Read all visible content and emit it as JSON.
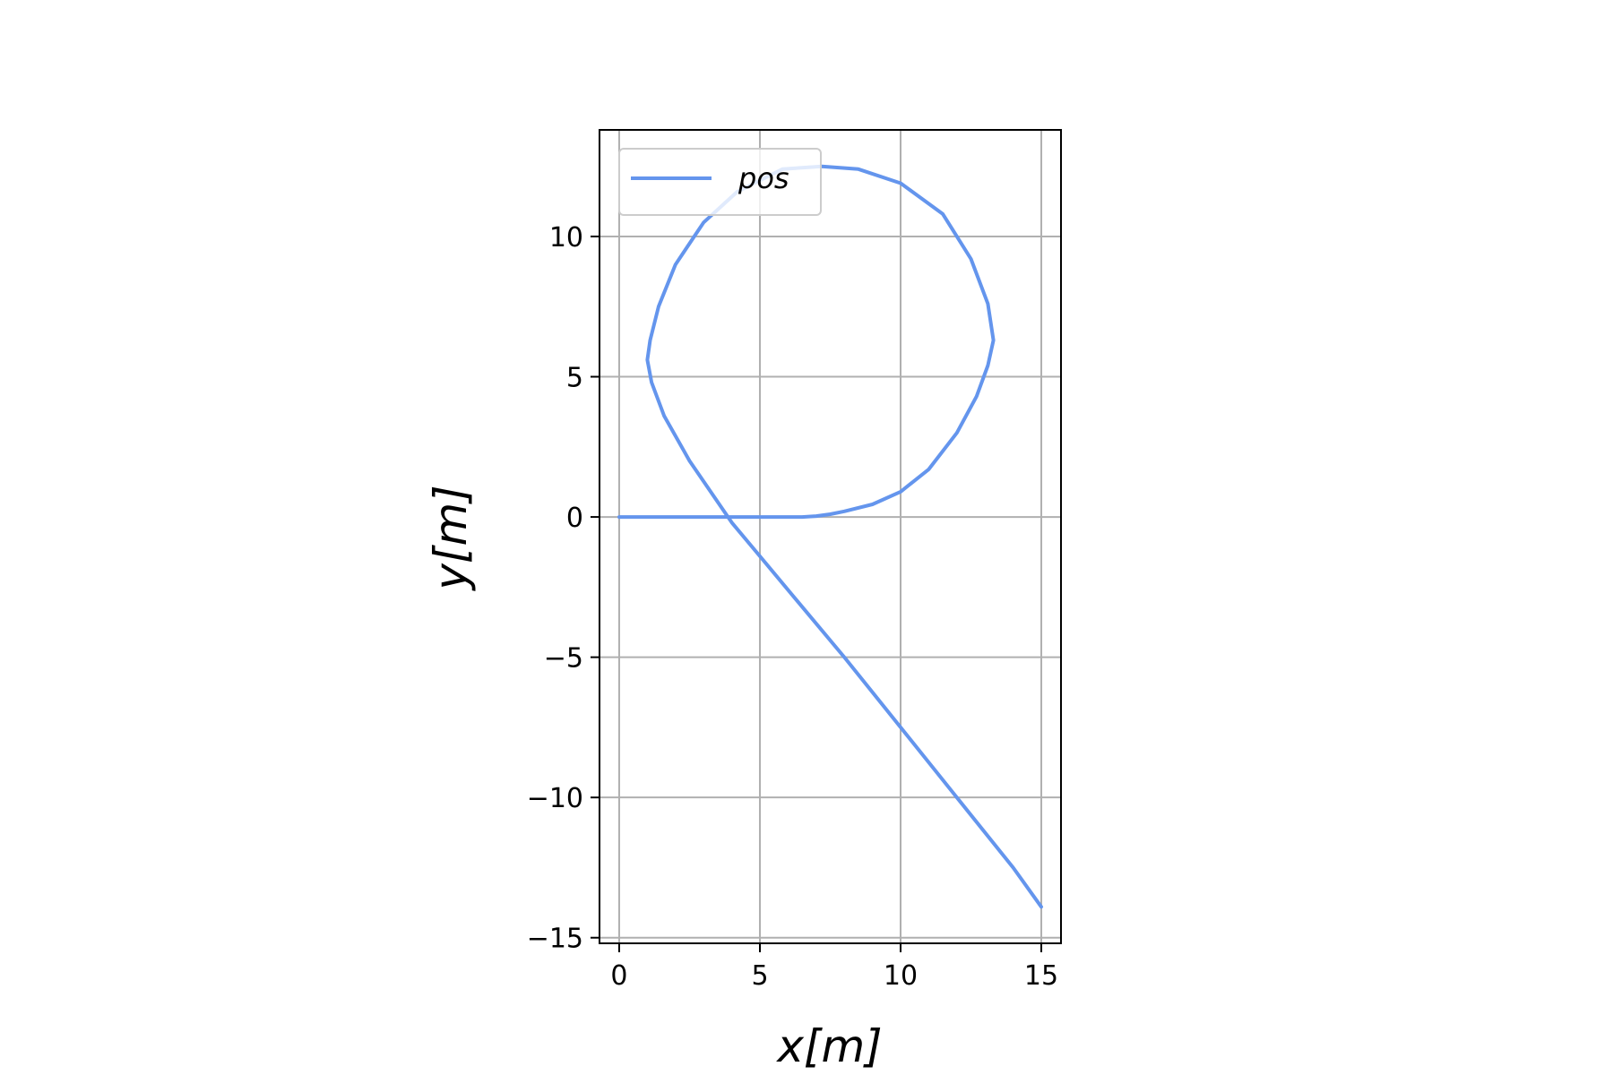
{
  "chart_data": {
    "type": "line",
    "title": "",
    "xlabel": "x[m]",
    "ylabel": "y[m]",
    "xlim": [
      -0.7,
      15.7
    ],
    "ylim": [
      -15.2,
      13.8
    ],
    "x_ticks": [
      0,
      5,
      10,
      15
    ],
    "y_ticks": [
      -15,
      -10,
      -5,
      0,
      5,
      10
    ],
    "x_tick_labels": [
      "0",
      "5",
      "10",
      "15"
    ],
    "y_tick_labels": [
      "−15",
      "−10",
      "−5",
      "0",
      "5",
      "10"
    ],
    "grid": true,
    "legend": {
      "position": "top-left",
      "entries": [
        "pos"
      ]
    },
    "series": [
      {
        "name": "pos",
        "color": "#6495ED",
        "x": [
          0.0,
          2.0,
          4.0,
          6.0,
          6.5,
          7.0,
          7.5,
          8.0,
          9.0,
          10.0,
          11.0,
          12.0,
          12.7,
          13.1,
          13.3,
          13.1,
          12.5,
          11.5,
          10.0,
          8.5,
          7.2,
          5.8,
          4.2,
          3.0,
          2.0,
          1.4,
          1.1,
          1.0,
          1.15,
          1.6,
          2.5,
          4.0,
          5.0,
          6.5,
          8.0,
          10.0,
          12.0,
          14.0,
          15.0
        ],
        "y": [
          0.0,
          0.0,
          0.0,
          0.0,
          0.0,
          0.03,
          0.1,
          0.2,
          0.45,
          0.9,
          1.7,
          3.0,
          4.3,
          5.4,
          6.3,
          7.6,
          9.2,
          10.8,
          11.9,
          12.4,
          12.5,
          12.4,
          11.6,
          10.5,
          9.0,
          7.5,
          6.3,
          5.6,
          4.8,
          3.6,
          2.0,
          -0.2,
          -1.4,
          -3.2,
          -5.0,
          -7.5,
          -10.0,
          -12.5,
          -13.9
        ]
      }
    ]
  }
}
